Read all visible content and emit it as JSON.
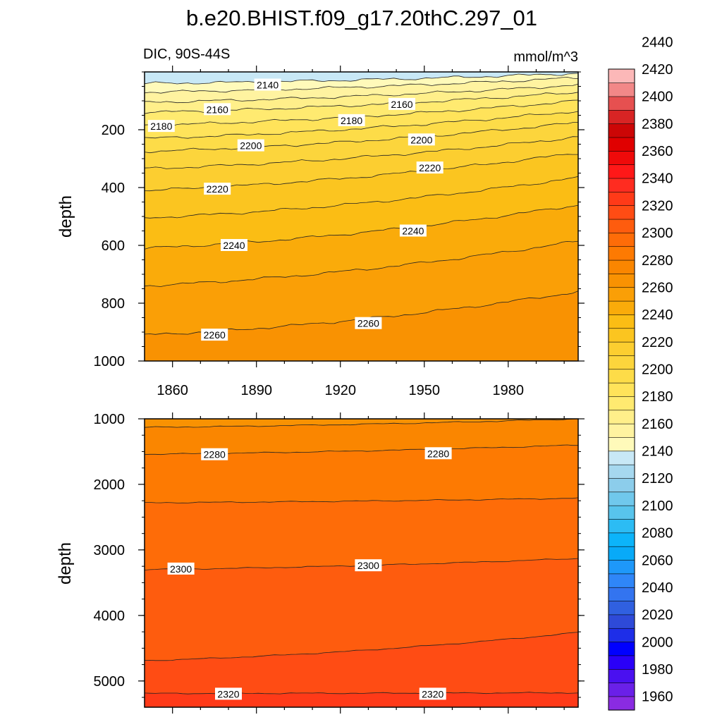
{
  "chart_data": {
    "type": "contour",
    "title": "b.e20.BHIST.f09_g17.20thC.297_01",
    "left_subtitle": "DIC, 90S-44S",
    "right_subtitle": "mmol/m^3",
    "x_range": [
      1850,
      2005
    ],
    "x_ticks": [
      1860,
      1890,
      1920,
      1950,
      1980
    ],
    "panels": [
      {
        "name": "upper",
        "ylabel": "depth",
        "y_range": [
          0,
          1000
        ],
        "y_ticks": [
          200,
          400,
          600,
          800,
          1000
        ],
        "x_tick_labels": [
          "1860",
          "1890",
          "1920",
          "1950",
          "1980"
        ],
        "contours": [
          {
            "level": 2140,
            "y_start": 40,
            "y_end": 5
          },
          {
            "level": 2150,
            "y_start": 70,
            "y_end": 20
          },
          {
            "level": 2160,
            "y_start": 105,
            "y_end": 45
          },
          {
            "level": 2170,
            "y_start": 140,
            "y_end": 70
          },
          {
            "level": 2180,
            "y_start": 185,
            "y_end": 100
          },
          {
            "level": 2190,
            "y_start": 230,
            "y_end": 135
          },
          {
            "level": 2200,
            "y_start": 275,
            "y_end": 175
          },
          {
            "level": 2210,
            "y_start": 335,
            "y_end": 225
          },
          {
            "level": 2220,
            "y_start": 410,
            "y_end": 280
          },
          {
            "level": 2230,
            "y_start": 505,
            "y_end": 365
          },
          {
            "level": 2240,
            "y_start": 610,
            "y_end": 460
          },
          {
            "level": 2250,
            "y_start": 740,
            "y_end": 585
          },
          {
            "level": 2260,
            "y_start": 910,
            "y_end": 760
          }
        ],
        "labels": [
          {
            "text": "2140",
            "x": 1894,
            "y": 45
          },
          {
            "text": "2160",
            "x": 1876,
            "y": 130
          },
          {
            "text": "2160",
            "x": 1942,
            "y": 112
          },
          {
            "text": "2180",
            "x": 1856,
            "y": 188
          },
          {
            "text": "2180",
            "x": 1924,
            "y": 168
          },
          {
            "text": "2200",
            "x": 1888,
            "y": 255
          },
          {
            "text": "2200",
            "x": 1949,
            "y": 235
          },
          {
            "text": "2220",
            "x": 1876,
            "y": 405
          },
          {
            "text": "2220",
            "x": 1952,
            "y": 332
          },
          {
            "text": "2240",
            "x": 1882,
            "y": 600
          },
          {
            "text": "2240",
            "x": 1946,
            "y": 550
          },
          {
            "text": "2260",
            "x": 1875,
            "y": 910
          },
          {
            "text": "2260",
            "x": 1930,
            "y": 870
          }
        ]
      },
      {
        "name": "lower",
        "ylabel": "depth",
        "y_range": [
          1000,
          5400
        ],
        "y_ticks": [
          1000,
          2000,
          3000,
          4000,
          5000
        ],
        "contours": [
          {
            "level": 2270,
            "y_start": 1130,
            "y_end": 1000
          },
          {
            "level": 2280,
            "y_start": 1540,
            "y_end": 1400
          },
          {
            "level": 2290,
            "y_start": 2280,
            "y_end": 2210
          },
          {
            "level": 2300,
            "y_start": 3300,
            "y_end": 3130
          },
          {
            "level": 2310,
            "y_start": 4690,
            "y_end": 4260
          },
          {
            "level": 2320,
            "y_start": 5190,
            "y_end": 5180
          }
        ],
        "labels": [
          {
            "text": "2280",
            "x": 1875,
            "y": 1545
          },
          {
            "text": "2280",
            "x": 1955,
            "y": 1530
          },
          {
            "text": "2300",
            "x": 1863,
            "y": 3290
          },
          {
            "text": "2300",
            "x": 1930,
            "y": 3240
          },
          {
            "text": "2320",
            "x": 1880,
            "y": 5200
          },
          {
            "text": "2320",
            "x": 1953,
            "y": 5200
          }
        ]
      }
    ],
    "colorbar": {
      "min": 1950,
      "max": 2460,
      "step": 10,
      "labels": [
        "2440",
        "2420",
        "2400",
        "2380",
        "2360",
        "2340",
        "2320",
        "2300",
        "2280",
        "2260",
        "2240",
        "2220",
        "2200",
        "2180",
        "2160",
        "2140",
        "2120",
        "2100",
        "2080",
        "2060",
        "2040",
        "2020",
        "2000",
        "1980",
        "1960"
      ],
      "label_values": [
        2440,
        2420,
        2400,
        2380,
        2360,
        2340,
        2320,
        2300,
        2280,
        2260,
        2240,
        2220,
        2200,
        2180,
        2160,
        2140,
        2120,
        2100,
        2080,
        2060,
        2040,
        2020,
        2000,
        1980,
        1960
      ]
    }
  }
}
